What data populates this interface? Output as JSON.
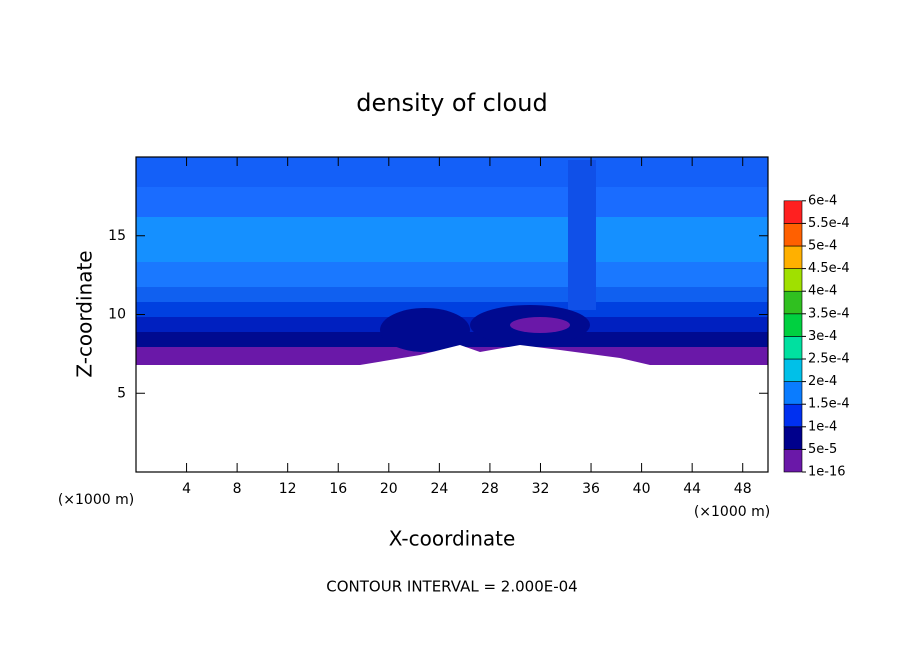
{
  "chart_data": {
    "type": "contour",
    "title": "density of cloud",
    "x_label": "X-coordinate",
    "y_label": "Z-coordinate",
    "x_unit": "(×1000 m)",
    "y_unit": "(×1000 m)",
    "footer": "CONTOUR INTERVAL = 2.000E-04",
    "xlim": [
      0,
      50
    ],
    "ylim": [
      0,
      20
    ],
    "xticks": [
      4,
      8,
      12,
      16,
      20,
      24,
      28,
      32,
      36,
      40,
      44,
      48
    ],
    "yticks": [
      5,
      10,
      15
    ],
    "colorbar": {
      "levels": [
        {
          "value": 1e-16,
          "label": "1e-16"
        },
        {
          "value": 5e-05,
          "label": "5e-5"
        },
        {
          "value": 0.0001,
          "label": "1e-4"
        },
        {
          "value": 0.00015,
          "label": "1.5e-4"
        },
        {
          "value": 0.0002,
          "label": "2e-4"
        },
        {
          "value": 0.00025,
          "label": "2.5e-4"
        },
        {
          "value": 0.0003,
          "label": "3e-4"
        },
        {
          "value": 0.00035,
          "label": "3.5e-4"
        },
        {
          "value": 0.0004,
          "label": "4e-4"
        },
        {
          "value": 0.00045,
          "label": "4.5e-4"
        },
        {
          "value": 0.0005,
          "label": "5e-4"
        },
        {
          "value": 0.00055,
          "label": "5.5e-4"
        },
        {
          "value": 0.0006,
          "label": "6e-4"
        }
      ],
      "colors": [
        "#6a18a8",
        "#00008c",
        "#0030f0",
        "#0a7cff",
        "#00c0e8",
        "#00e0a0",
        "#00d040",
        "#30c020",
        "#a0e000",
        "#ffb000",
        "#ff6000",
        "#ff2020"
      ]
    }
  }
}
